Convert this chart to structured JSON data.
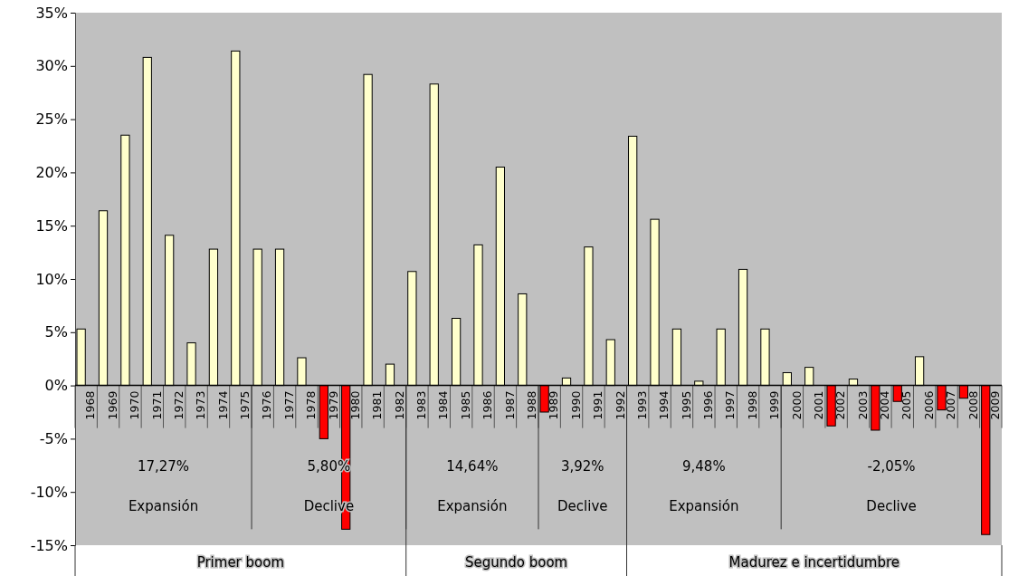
{
  "chart_data": {
    "type": "bar",
    "categories": [
      "1968",
      "1969",
      "1970",
      "1971",
      "1972",
      "1973",
      "1974",
      "1975",
      "1976",
      "1977",
      "1978",
      "1979",
      "1980",
      "1981",
      "1982",
      "1983",
      "1984",
      "1985",
      "1986",
      "1987",
      "1988",
      "1989",
      "1990",
      "1991",
      "1992",
      "1993",
      "1994",
      "1995",
      "1996",
      "1997",
      "1998",
      "1999",
      "2000",
      "2001",
      "2002",
      "2003",
      "2004",
      "2005",
      "2006",
      "2007",
      "2008",
      "2009"
    ],
    "values": [
      5.3,
      16.4,
      23.5,
      30.8,
      14.1,
      4.0,
      12.8,
      31.4,
      12.8,
      12.8,
      2.6,
      -5.0,
      -13.5,
      29.2,
      2.0,
      10.7,
      28.3,
      6.3,
      13.2,
      20.5,
      8.6,
      -2.5,
      0.7,
      13.0,
      4.3,
      23.4,
      15.6,
      5.3,
      0.4,
      5.3,
      10.9,
      5.3,
      1.2,
      1.7,
      -3.8,
      0.6,
      -4.2,
      -1.5,
      2.7,
      -2.3,
      -1.2,
      -14.0
    ],
    "colors": [
      "#ffffcc",
      "#ffffcc",
      "#ffffcc",
      "#ffffcc",
      "#ffffcc",
      "#ffffcc",
      "#ffffcc",
      "#ffffcc",
      "#ffffcc",
      "#ffffcc",
      "#ffffcc",
      "#ff0000",
      "#ff0000",
      "#ffffcc",
      "#ffffcc",
      "#ffffcc",
      "#ffffcc",
      "#ffffcc",
      "#ffffcc",
      "#ffffcc",
      "#ffffcc",
      "#ff0000",
      "#ffffcc",
      "#ffffcc",
      "#ffffcc",
      "#ffffcc",
      "#ffffcc",
      "#ffffcc",
      "#ffffcc",
      "#ffffcc",
      "#ffffcc",
      "#ffffcc",
      "#ffffcc",
      "#ffffcc",
      "#ff0000",
      "#ffffcc",
      "#ff0000",
      "#ff0000",
      "#ffffcc",
      "#ff0000",
      "#ff0000",
      "#ff0000"
    ],
    "ylim": [
      -15,
      35
    ],
    "yticks": [
      {
        "value": -15,
        "label": "-15%"
      },
      {
        "value": -10,
        "label": "-10%"
      },
      {
        "value": -5,
        "label": "-5%"
      },
      {
        "value": 0,
        "label": "0%"
      },
      {
        "value": 5,
        "label": "5%"
      },
      {
        "value": 10,
        "label": "10%"
      },
      {
        "value": 15,
        "label": "15%"
      },
      {
        "value": 20,
        "label": "20%"
      },
      {
        "value": 25,
        "label": "25%"
      },
      {
        "value": 30,
        "label": "30%"
      },
      {
        "value": 35,
        "label": "35%"
      }
    ],
    "grid": false,
    "annotations": [
      "17,27%",
      "Expansión",
      "5,80%",
      "Declive",
      "14,64%",
      "Expansión",
      "3,92%",
      "Declive",
      "9,48%",
      "Expansión",
      "-2,05%",
      "Declive",
      "Primer boom",
      "Segundo boom",
      "Madurez e incertidumbre"
    ]
  }
}
